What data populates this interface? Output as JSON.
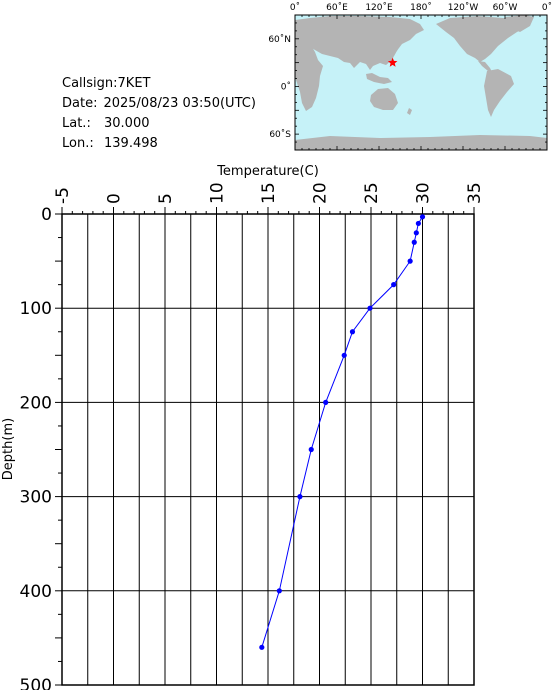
{
  "station": {
    "callsign_label": "Callsign:",
    "callsign": "7KET",
    "date_label": "Date:",
    "date": "2025/08/23 03:50(UTC)",
    "lat_label": "Lat.:",
    "lat": "30.000",
    "lon_label": "Lon.:",
    "lon": "139.498"
  },
  "map": {
    "top_labels": [
      "0˚",
      "60˚E",
      "120˚E",
      "180˚",
      "120˚W",
      "60˚W",
      "0˚"
    ],
    "lat_labels": [
      "60˚N",
      "0˚",
      "60˚S"
    ],
    "lon_range": [
      0,
      360
    ],
    "lat_range": [
      -80,
      90
    ],
    "marker_lon": 139.498,
    "marker_lat": 30.0,
    "colors": {
      "ocean": "#c6f2f8",
      "land": "#b4b4b4",
      "marker": "#ff0000"
    }
  },
  "chart_data": {
    "type": "line",
    "title": "",
    "xlabel": "Temperature(C)",
    "ylabel": "Depth(m)",
    "xlim": [
      -5,
      35
    ],
    "ylim": [
      0,
      500
    ],
    "x_ticks": [
      "-5",
      "0",
      "5",
      "10",
      "15",
      "20",
      "25",
      "30",
      "35"
    ],
    "y_ticks": [
      "0",
      "100",
      "200",
      "300",
      "400",
      "500"
    ],
    "grid": true,
    "x_axis_position": "top",
    "y_reversed": true,
    "series": [
      {
        "color": "#0000ff",
        "points": [
          {
            "x": 30.0,
            "y": 3
          },
          {
            "x": 29.6,
            "y": 10
          },
          {
            "x": 29.4,
            "y": 20
          },
          {
            "x": 29.2,
            "y": 30
          },
          {
            "x": 28.8,
            "y": 50
          },
          {
            "x": 27.2,
            "y": 75
          },
          {
            "x": 24.9,
            "y": 100
          },
          {
            "x": 23.2,
            "y": 125
          },
          {
            "x": 22.4,
            "y": 150
          },
          {
            "x": 20.6,
            "y": 200
          },
          {
            "x": 19.2,
            "y": 250
          },
          {
            "x": 18.1,
            "y": 300
          },
          {
            "x": 16.1,
            "y": 400
          },
          {
            "x": 14.4,
            "y": 460
          }
        ]
      }
    ]
  }
}
